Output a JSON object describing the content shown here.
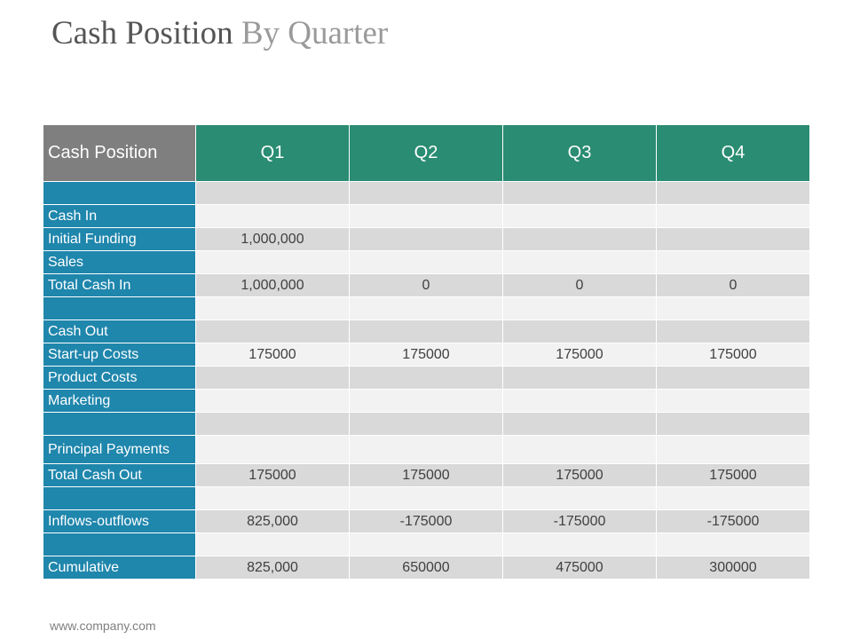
{
  "title": {
    "main": "Cash Position",
    "accent": "By Quarter"
  },
  "table": {
    "header": {
      "label": "Cash Position",
      "quarters": [
        "Q1",
        "Q2",
        "Q3",
        "Q4"
      ]
    },
    "rows": [
      {
        "label": "",
        "values": [
          "",
          "",
          "",
          ""
        ]
      },
      {
        "label": "Cash In",
        "values": [
          "",
          "",
          "",
          ""
        ]
      },
      {
        "label": "Initial Funding",
        "values": [
          "1,000,000",
          "",
          "",
          ""
        ]
      },
      {
        "label": "Sales",
        "values": [
          "",
          "",
          "",
          ""
        ]
      },
      {
        "label": "Total Cash In",
        "values": [
          "1,000,000",
          "0",
          "0",
          "0"
        ]
      },
      {
        "label": "",
        "values": [
          "",
          "",
          "",
          ""
        ]
      },
      {
        "label": "Cash Out",
        "values": [
          "",
          "",
          "",
          ""
        ]
      },
      {
        "label": "Start-up Costs",
        "values": [
          "175000",
          "175000",
          "175000",
          "175000"
        ]
      },
      {
        "label": "Product Costs",
        "values": [
          "",
          "",
          "",
          ""
        ]
      },
      {
        "label": "Marketing",
        "values": [
          "",
          "",
          "",
          ""
        ]
      },
      {
        "label": "",
        "values": [
          "",
          "",
          "",
          ""
        ]
      },
      {
        "label": "Principal Payments",
        "values": [
          "",
          "",
          "",
          ""
        ]
      },
      {
        "label": "Total Cash Out",
        "values": [
          "175000",
          "175000",
          "175000",
          "175000"
        ]
      },
      {
        "label": "",
        "values": [
          "",
          "",
          "",
          ""
        ]
      },
      {
        "label": "Inflows-outflows",
        "values": [
          "825,000",
          "-175000",
          "-175000",
          "-175000"
        ]
      },
      {
        "label": "",
        "values": [
          "",
          "",
          "",
          ""
        ]
      },
      {
        "label": "Cumulative",
        "values": [
          "825,000",
          "650000",
          "475000",
          "300000"
        ]
      }
    ]
  },
  "footer": {
    "url": "www.company.com"
  },
  "colors": {
    "header_label_bg": "#7f7f7f",
    "header_quarter_bg": "#2a8c72",
    "row_label_bg": "#1f86ac",
    "cell_dark": "#d9d9d9",
    "cell_light": "#f2f2f2"
  }
}
